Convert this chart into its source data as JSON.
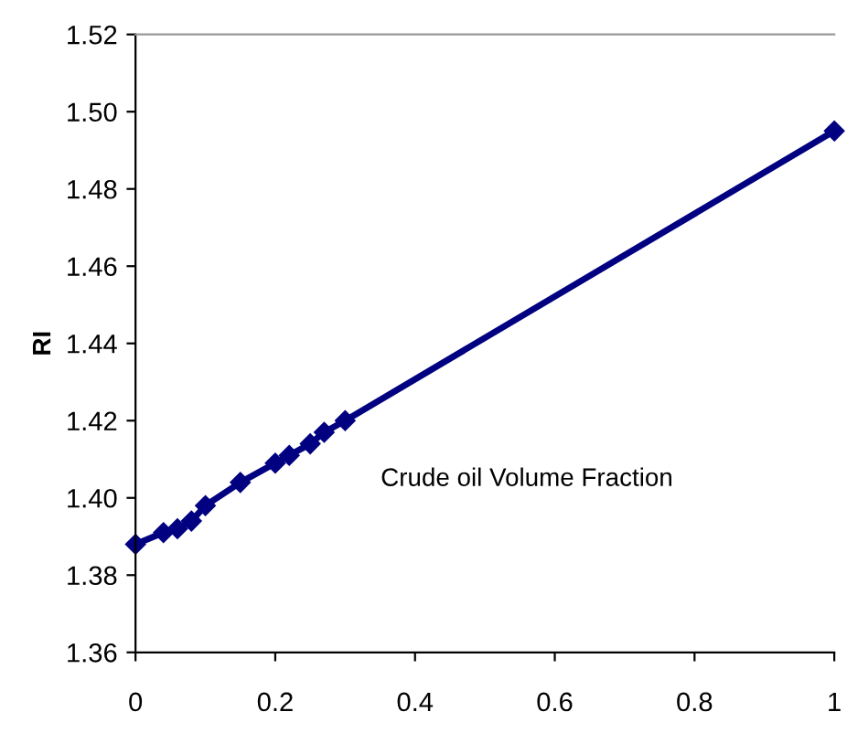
{
  "chart_data": {
    "type": "line",
    "ylabel": "RI",
    "annotations": [
      "Crude oil Volume Fraction"
    ],
    "x": [
      0,
      0.04,
      0.06,
      0.08,
      0.1,
      0.15,
      0.2,
      0.22,
      0.25,
      0.27,
      0.3,
      1
    ],
    "series": [
      {
        "color": "#000080",
        "values": [
          1.388,
          1.391,
          1.392,
          1.394,
          1.398,
          1.404,
          1.409,
          1.411,
          1.414,
          1.417,
          1.42,
          1.495
        ]
      }
    ],
    "marker": "diamond",
    "line_style": "solid",
    "xlim": [
      0,
      1
    ],
    "xticks": [
      0,
      0.2,
      0.4,
      0.6,
      0.8,
      1
    ],
    "ylim": [
      1.36,
      1.52
    ],
    "yticks": [
      {
        "value": 1.36,
        "label": "1.36"
      },
      {
        "value": 1.38,
        "label": "1.38"
      },
      {
        "value": 1.4,
        "label": "1.40"
      },
      {
        "value": 1.42,
        "label": "1.42"
      },
      {
        "value": 1.44,
        "label": "1.44"
      },
      {
        "value": 1.46,
        "label": "1.46"
      },
      {
        "value": 1.48,
        "label": "1.48"
      },
      {
        "value": 1.5,
        "label": "1.50"
      },
      {
        "value": 1.52,
        "label": "1.52"
      }
    ],
    "grid": false,
    "legend": false
  }
}
